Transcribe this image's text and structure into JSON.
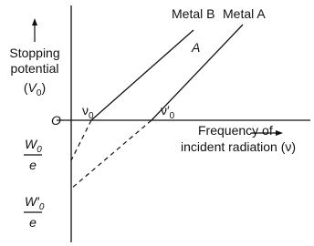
{
  "axes": {
    "origin": "O",
    "y_label": {
      "line1": "Stopping",
      "line2": "potential",
      "line3": [
        "(",
        "V",
        "0",
        ")"
      ]
    },
    "x_label": {
      "line1": "Frequency of",
      "line2": "incident radiation (ν)"
    }
  },
  "lines": [
    {
      "label": "Metal B",
      "threshold": "ν",
      "threshold_sub": "0",
      "intercept": "W",
      "intercept_sub": "0",
      "denominator": "e"
    },
    {
      "label": "Metal A",
      "point_label": "A",
      "threshold": "ν′",
      "threshold_sub": "0",
      "intercept": "W′",
      "intercept_sub": "0",
      "denominator": "e"
    }
  ]
}
